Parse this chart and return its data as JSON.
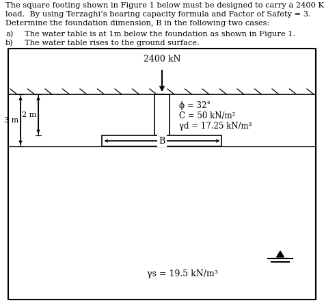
{
  "line1": "The square footing shown in Figure 1 below must be designed to carry a 2400 KN",
  "line2": "load.  By using Terzaghi’s bearing capacity formula and Factor of Safety = 3.",
  "line3": "Determine the foundation dimension, B in the following two cases:",
  "item_a_label": "a)",
  "item_a_text": "The water table is at 1m below the foundation as shown in Figure 1.",
  "item_b_label": "b)",
  "item_b_text": "The water table rises to the ground surface.",
  "load_label": "2400 kN",
  "phi_label": "ϕ = 32°",
  "C_label": "C = 50 kN/m²",
  "Yd_label": "γd = 17.25 kN/m³",
  "Ys_label": "γs = 19.5 kN/m³",
  "dim_2m": "2 m",
  "dim_3m": "3 m",
  "dim_B": "B",
  "bg_color": "#ffffff",
  "box_edge_color": "#000000"
}
